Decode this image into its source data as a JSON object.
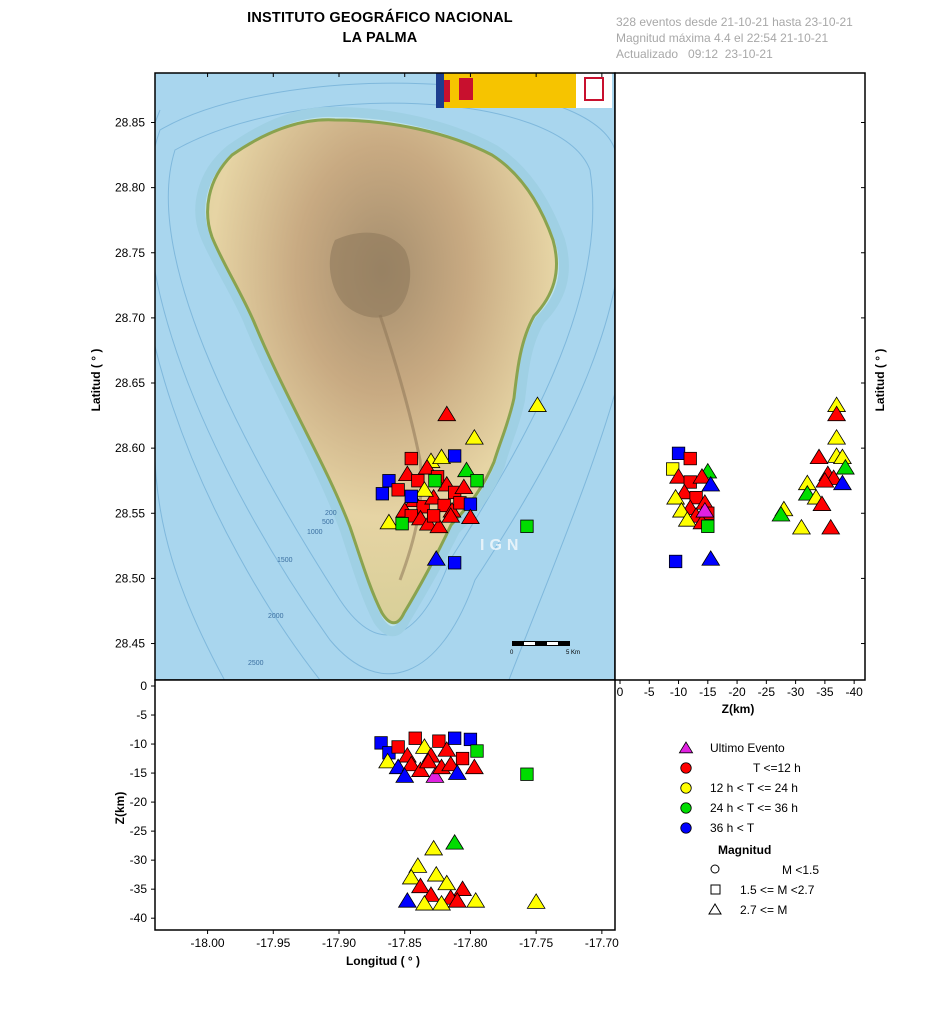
{
  "header": {
    "title_line1": "INSTITUTO GEOGRÁFICO NACIONAL",
    "title_line2": "LA PALMA",
    "info_line1": "328 eventos desde 21-10-21 hasta 23-10-21",
    "info_line2": "Magnitud máxima 4.4 el 22:54 21-10-21",
    "info_line3": "Actualizado   09:12  23-10-21"
  },
  "map": {
    "watermark": "IGN",
    "scalebar_start": "0",
    "scalebar_end": "5 Km",
    "bathymetry_labels": [
      "200",
      "500",
      "1000",
      "1500",
      "2000",
      "2500"
    ]
  },
  "legend": {
    "items": [
      {
        "label": "Ultimo Evento",
        "color": "#e020e0",
        "shape": "triangle"
      },
      {
        "label": "T <=12 h",
        "color": "#ff0000",
        "shape": "circle"
      },
      {
        "label": "12 h  < T <= 24 h",
        "color": "#ffff00",
        "shape": "circle"
      },
      {
        "label": "24 h  < T <= 36 h",
        "color": "#00dd00",
        "shape": "circle"
      },
      {
        "label": "36 h <  T",
        "color": "#0000ff",
        "shape": "circle"
      }
    ],
    "magnitude_title": "Magnitud",
    "magnitudes": [
      {
        "label": "M <1.5",
        "shape": "circle"
      },
      {
        "label": "1.5 <= M <2.7",
        "shape": "square"
      },
      {
        "label": "2.7 <= M",
        "shape": "triangle"
      }
    ]
  },
  "chart_data": [
    {
      "type": "scatter",
      "panel": "map",
      "xlabel": "",
      "ylabel": "Latitud ( ° )",
      "xlim": [
        -18.04,
        -17.69
      ],
      "ylim": [
        28.422,
        28.888
      ],
      "yticks": [
        "28.45",
        "28.50",
        "28.55",
        "28.60",
        "28.65",
        "28.70",
        "28.75",
        "28.80",
        "28.85"
      ],
      "points": [
        {
          "lon": -17.818,
          "lat": 28.626,
          "color": "red",
          "shape": "triangle"
        },
        {
          "lon": -17.749,
          "lat": 28.633,
          "color": "yellow",
          "shape": "triangle"
        },
        {
          "lon": -17.797,
          "lat": 28.608,
          "color": "yellow",
          "shape": "triangle"
        },
        {
          "lon": -17.845,
          "lat": 28.592,
          "color": "red",
          "shape": "square"
        },
        {
          "lon": -17.83,
          "lat": 28.59,
          "color": "yellow",
          "shape": "triangle"
        },
        {
          "lon": -17.822,
          "lat": 28.593,
          "color": "yellow",
          "shape": "triangle"
        },
        {
          "lon": -17.812,
          "lat": 28.594,
          "color": "blue",
          "shape": "square"
        },
        {
          "lon": -17.803,
          "lat": 28.583,
          "color": "green",
          "shape": "triangle"
        },
        {
          "lon": -17.795,
          "lat": 28.575,
          "color": "green",
          "shape": "square"
        },
        {
          "lon": -17.862,
          "lat": 28.575,
          "color": "blue",
          "shape": "square"
        },
        {
          "lon": -17.867,
          "lat": 28.565,
          "color": "blue",
          "shape": "square"
        },
        {
          "lon": -17.855,
          "lat": 28.568,
          "color": "red",
          "shape": "square"
        },
        {
          "lon": -17.848,
          "lat": 28.58,
          "color": "red",
          "shape": "triangle"
        },
        {
          "lon": -17.84,
          "lat": 28.575,
          "color": "red",
          "shape": "square"
        },
        {
          "lon": -17.833,
          "lat": 28.585,
          "color": "red",
          "shape": "triangle"
        },
        {
          "lon": -17.825,
          "lat": 28.578,
          "color": "red",
          "shape": "square"
        },
        {
          "lon": -17.818,
          "lat": 28.572,
          "color": "red",
          "shape": "triangle"
        },
        {
          "lon": -17.812,
          "lat": 28.566,
          "color": "red",
          "shape": "square"
        },
        {
          "lon": -17.805,
          "lat": 28.57,
          "color": "red",
          "shape": "triangle"
        },
        {
          "lon": -17.843,
          "lat": 28.56,
          "color": "red",
          "shape": "triangle"
        },
        {
          "lon": -17.836,
          "lat": 28.555,
          "color": "red",
          "shape": "square"
        },
        {
          "lon": -17.828,
          "lat": 28.562,
          "color": "red",
          "shape": "triangle"
        },
        {
          "lon": -17.82,
          "lat": 28.556,
          "color": "red",
          "shape": "square"
        },
        {
          "lon": -17.814,
          "lat": 28.552,
          "color": "red",
          "shape": "triangle"
        },
        {
          "lon": -17.808,
          "lat": 28.558,
          "color": "red",
          "shape": "square"
        },
        {
          "lon": -17.85,
          "lat": 28.552,
          "color": "red",
          "shape": "triangle"
        },
        {
          "lon": -17.845,
          "lat": 28.548,
          "color": "red",
          "shape": "square"
        },
        {
          "lon": -17.838,
          "lat": 28.546,
          "color": "red",
          "shape": "triangle"
        },
        {
          "lon": -17.832,
          "lat": 28.542,
          "color": "red",
          "shape": "triangle"
        },
        {
          "lon": -17.824,
          "lat": 28.54,
          "color": "red",
          "shape": "triangle"
        },
        {
          "lon": -17.862,
          "lat": 28.543,
          "color": "yellow",
          "shape": "triangle"
        },
        {
          "lon": -17.852,
          "lat": 28.542,
          "color": "green",
          "shape": "square"
        },
        {
          "lon": -17.835,
          "lat": 28.568,
          "color": "yellow",
          "shape": "triangle"
        },
        {
          "lon": -17.827,
          "lat": 28.575,
          "color": "green",
          "shape": "square"
        },
        {
          "lon": -17.845,
          "lat": 28.563,
          "color": "blue",
          "shape": "square"
        },
        {
          "lon": -17.8,
          "lat": 28.557,
          "color": "blue",
          "shape": "square"
        },
        {
          "lon": -17.8,
          "lat": 28.547,
          "color": "red",
          "shape": "triangle"
        },
        {
          "lon": -17.815,
          "lat": 28.548,
          "color": "red",
          "shape": "triangle"
        },
        {
          "lon": -17.828,
          "lat": 28.548,
          "color": "red",
          "shape": "square"
        },
        {
          "lon": -17.757,
          "lat": 28.54,
          "color": "green",
          "shape": "square"
        },
        {
          "lon": -17.826,
          "lat": 28.515,
          "color": "blue",
          "shape": "triangle"
        },
        {
          "lon": -17.812,
          "lat": 28.512,
          "color": "blue",
          "shape": "square"
        }
      ]
    },
    {
      "type": "scatter",
      "panel": "depth-latitude",
      "xlabel": "Z(km)",
      "ylabel": "Latitud ( ° )",
      "xlim": [
        0,
        -41
      ],
      "ylim": [
        28.422,
        28.888
      ],
      "xticks": [
        "0",
        "-5",
        "-10",
        "-15",
        "-20",
        "-25",
        "-30",
        "-35",
        "-40"
      ],
      "points": [
        {
          "z": -10,
          "lat": 28.596,
          "color": "blue",
          "shape": "square"
        },
        {
          "z": -12,
          "lat": 28.592,
          "color": "red",
          "shape": "square"
        },
        {
          "z": -9,
          "lat": 28.584,
          "color": "yellow",
          "shape": "square"
        },
        {
          "z": -15,
          "lat": 28.582,
          "color": "green",
          "shape": "triangle"
        },
        {
          "z": -10,
          "lat": 28.578,
          "color": "red",
          "shape": "triangle"
        },
        {
          "z": -12,
          "lat": 28.574,
          "color": "red",
          "shape": "square"
        },
        {
          "z": -14,
          "lat": 28.578,
          "color": "red",
          "shape": "triangle"
        },
        {
          "z": -15.5,
          "lat": 28.572,
          "color": "blue",
          "shape": "triangle"
        },
        {
          "z": -11,
          "lat": 28.566,
          "color": "red",
          "shape": "triangle"
        },
        {
          "z": -13,
          "lat": 28.562,
          "color": "red",
          "shape": "square"
        },
        {
          "z": -9.5,
          "lat": 28.562,
          "color": "yellow",
          "shape": "triangle"
        },
        {
          "z": -14.5,
          "lat": 28.558,
          "color": "red",
          "shape": "triangle"
        },
        {
          "z": -12,
          "lat": 28.554,
          "color": "red",
          "shape": "triangle"
        },
        {
          "z": -10.5,
          "lat": 28.552,
          "color": "yellow",
          "shape": "triangle"
        },
        {
          "z": -15,
          "lat": 28.55,
          "color": "red",
          "shape": "square"
        },
        {
          "z": -13,
          "lat": 28.548,
          "color": "red",
          "shape": "triangle"
        },
        {
          "z": -11.5,
          "lat": 28.545,
          "color": "yellow",
          "shape": "triangle"
        },
        {
          "z": -14,
          "lat": 28.543,
          "color": "red",
          "shape": "triangle"
        },
        {
          "z": -15,
          "lat": 28.54,
          "color": "green",
          "shape": "square"
        },
        {
          "z": -14.5,
          "lat": 28.552,
          "color": "purple",
          "shape": "triangle"
        },
        {
          "z": -9.5,
          "lat": 28.513,
          "color": "blue",
          "shape": "square"
        },
        {
          "z": -15.5,
          "lat": 28.515,
          "color": "blue",
          "shape": "triangle"
        },
        {
          "z": -37,
          "lat": 28.633,
          "color": "yellow",
          "shape": "triangle"
        },
        {
          "z": -37,
          "lat": 28.626,
          "color": "red",
          "shape": "triangle"
        },
        {
          "z": -37,
          "lat": 28.608,
          "color": "yellow",
          "shape": "triangle"
        },
        {
          "z": -34,
          "lat": 28.593,
          "color": "red",
          "shape": "triangle"
        },
        {
          "z": -37,
          "lat": 28.594,
          "color": "yellow",
          "shape": "triangle"
        },
        {
          "z": -38,
          "lat": 28.593,
          "color": "yellow",
          "shape": "triangle"
        },
        {
          "z": -38.5,
          "lat": 28.585,
          "color": "green",
          "shape": "triangle"
        },
        {
          "z": -35.5,
          "lat": 28.58,
          "color": "red",
          "shape": "triangle"
        },
        {
          "z": -36.5,
          "lat": 28.577,
          "color": "red",
          "shape": "triangle"
        },
        {
          "z": -38,
          "lat": 28.573,
          "color": "blue",
          "shape": "triangle"
        },
        {
          "z": -32,
          "lat": 28.573,
          "color": "yellow",
          "shape": "triangle"
        },
        {
          "z": -35,
          "lat": 28.575,
          "color": "red",
          "shape": "triangle"
        },
        {
          "z": -32,
          "lat": 28.565,
          "color": "green",
          "shape": "triangle"
        },
        {
          "z": -33.5,
          "lat": 28.562,
          "color": "yellow",
          "shape": "triangle"
        },
        {
          "z": -34.5,
          "lat": 28.557,
          "color": "red",
          "shape": "triangle"
        },
        {
          "z": -28,
          "lat": 28.553,
          "color": "yellow",
          "shape": "triangle"
        },
        {
          "z": -27.5,
          "lat": 28.549,
          "color": "green",
          "shape": "triangle"
        },
        {
          "z": -31,
          "lat": 28.539,
          "color": "yellow",
          "shape": "triangle"
        },
        {
          "z": -36,
          "lat": 28.539,
          "color": "red",
          "shape": "triangle"
        }
      ]
    },
    {
      "type": "scatter",
      "panel": "longitude-depth",
      "xlabel": "Longitud ( ° )",
      "ylabel": "Z(km)",
      "xlim": [
        -18.04,
        -17.69
      ],
      "ylim": [
        0,
        -41
      ],
      "xticks": [
        "-18.00",
        "-17.95",
        "-17.90",
        "-17.85",
        "-17.80",
        "-17.75",
        "-17.70"
      ],
      "yticks": [
        "0",
        "-5",
        "-10",
        "-15",
        "-20",
        "-25",
        "-30",
        "-35",
        "-40"
      ],
      "points": [
        {
          "lon": -17.868,
          "z": -9.8,
          "color": "blue",
          "shape": "square"
        },
        {
          "lon": -17.862,
          "z": -11.5,
          "color": "blue",
          "shape": "square"
        },
        {
          "lon": -17.855,
          "z": -10.5,
          "color": "red",
          "shape": "square"
        },
        {
          "lon": -17.848,
          "z": -12,
          "color": "red",
          "shape": "triangle"
        },
        {
          "lon": -17.842,
          "z": -9,
          "color": "red",
          "shape": "square"
        },
        {
          "lon": -17.835,
          "z": -10.5,
          "color": "yellow",
          "shape": "triangle"
        },
        {
          "lon": -17.83,
          "z": -12,
          "color": "red",
          "shape": "triangle"
        },
        {
          "lon": -17.824,
          "z": -9.5,
          "color": "red",
          "shape": "square"
        },
        {
          "lon": -17.818,
          "z": -11,
          "color": "red",
          "shape": "triangle"
        },
        {
          "lon": -17.812,
          "z": -9,
          "color": "blue",
          "shape": "square"
        },
        {
          "lon": -17.806,
          "z": -12.5,
          "color": "red",
          "shape": "square"
        },
        {
          "lon": -17.8,
          "z": -9.2,
          "color": "blue",
          "shape": "square"
        },
        {
          "lon": -17.795,
          "z": -11.2,
          "color": "green",
          "shape": "square"
        },
        {
          "lon": -17.797,
          "z": -14,
          "color": "red",
          "shape": "triangle"
        },
        {
          "lon": -17.863,
          "z": -13,
          "color": "yellow",
          "shape": "triangle"
        },
        {
          "lon": -17.855,
          "z": -14,
          "color": "blue",
          "shape": "triangle"
        },
        {
          "lon": -17.845,
          "z": -13.5,
          "color": "red",
          "shape": "triangle"
        },
        {
          "lon": -17.838,
          "z": -14.5,
          "color": "red",
          "shape": "triangle"
        },
        {
          "lon": -17.832,
          "z": -13,
          "color": "red",
          "shape": "triangle"
        },
        {
          "lon": -17.827,
          "z": -15.5,
          "color": "purple",
          "shape": "triangle"
        },
        {
          "lon": -17.822,
          "z": -14,
          "color": "red",
          "shape": "triangle"
        },
        {
          "lon": -17.815,
          "z": -13.5,
          "color": "red",
          "shape": "triangle"
        },
        {
          "lon": -17.81,
          "z": -15,
          "color": "blue",
          "shape": "triangle"
        },
        {
          "lon": -17.85,
          "z": -15.5,
          "color": "blue",
          "shape": "triangle"
        },
        {
          "lon": -17.757,
          "z": -15.2,
          "color": "green",
          "shape": "square"
        },
        {
          "lon": -17.812,
          "z": -27,
          "color": "green",
          "shape": "triangle"
        },
        {
          "lon": -17.828,
          "z": -28,
          "color": "yellow",
          "shape": "triangle"
        },
        {
          "lon": -17.84,
          "z": -31,
          "color": "yellow",
          "shape": "triangle"
        },
        {
          "lon": -17.845,
          "z": -33,
          "color": "yellow",
          "shape": "triangle"
        },
        {
          "lon": -17.826,
          "z": -32.5,
          "color": "yellow",
          "shape": "triangle"
        },
        {
          "lon": -17.838,
          "z": -34.5,
          "color": "red",
          "shape": "triangle"
        },
        {
          "lon": -17.818,
          "z": -34,
          "color": "yellow",
          "shape": "triangle"
        },
        {
          "lon": -17.806,
          "z": -35,
          "color": "red",
          "shape": "triangle"
        },
        {
          "lon": -17.83,
          "z": -36,
          "color": "red",
          "shape": "triangle"
        },
        {
          "lon": -17.815,
          "z": -36.5,
          "color": "red",
          "shape": "triangle"
        },
        {
          "lon": -17.848,
          "z": -37,
          "color": "blue",
          "shape": "triangle"
        },
        {
          "lon": -17.835,
          "z": -37.5,
          "color": "yellow",
          "shape": "triangle"
        },
        {
          "lon": -17.822,
          "z": -37.5,
          "color": "yellow",
          "shape": "triangle"
        },
        {
          "lon": -17.81,
          "z": -37,
          "color": "red",
          "shape": "triangle"
        },
        {
          "lon": -17.796,
          "z": -37,
          "color": "yellow",
          "shape": "triangle"
        },
        {
          "lon": -17.75,
          "z": -37.2,
          "color": "yellow",
          "shape": "triangle"
        }
      ]
    }
  ],
  "colors": {
    "red": "#ff0000",
    "yellow": "#ffff00",
    "green": "#00dd00",
    "blue": "#0000ff",
    "purple": "#e020e0",
    "sea": "#a9d6ee",
    "land": "#e9d7a6"
  }
}
